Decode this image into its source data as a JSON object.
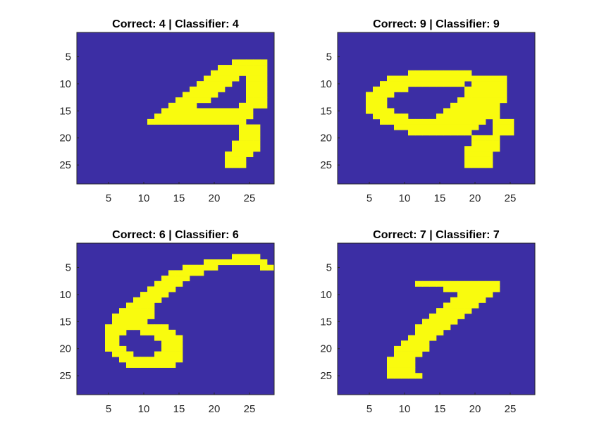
{
  "chart_data": [
    {
      "type": "heatmap",
      "title": "Correct: 4 | Classifier: 4",
      "image_size": [
        28,
        28
      ],
      "xticks": [
        "5",
        "10",
        "15",
        "20",
        "25"
      ],
      "yticks": [
        "5",
        "10",
        "15",
        "20",
        "25"
      ],
      "colormap": {
        "background": "#3c2ea4",
        "ink": "#f9fb0e"
      },
      "rows": [
        "............................",
        "............................",
        "............................",
        "............................",
        "............................",
        "......................#####.",
        "....................#######.",
        "...................########.",
        "..................#####.###.",
        ".................#####..###.",
        "................#####...###.",
        "...............#####....###.",
        "..............#####.....###.",
        ".............####......####.",
        "............#############...",
        "...........##############...",
        "..........##############....",
        ".......................###..",
        ".......................###..",
        ".......................###..",
        "......................####..",
        "......................####..",
        ".....................####...",
        ".....................###....",
        ".....................###....",
        "............................",
        "............................",
        "............................"
      ]
    },
    {
      "type": "heatmap",
      "title": "Correct: 9 | Classifier: 9",
      "image_size": [
        28,
        28
      ],
      "xticks": [
        "5",
        "10",
        "15",
        "20",
        "25"
      ],
      "yticks": [
        "5",
        "10",
        "15",
        "20",
        "25"
      ],
      "colormap": {
        "background": "#3c2ea4",
        "ink": "#f9fb0e"
      },
      "rows": [
        "............................",
        "............................",
        "............................",
        "............................",
        "............................",
        "............................",
        "............................",
        "..........#########.........",
        ".......#################....",
        "......############.#####....",
        ".....#####........######....",
        "....####..........######....",
        "....###..........#######....",
        "....###.........#######.....",
        "....####.......########.....",
        ".....#####....#########.....",
        "......###############.###...",
        "........############..###...",
        "..........#########...###...",
        "...................####.....",
        "...................####.....",
        "..................#####.....",
        "..................####......",
        "..................####......",
        "..................####......",
        "............................",
        "............................",
        "............................"
      ]
    },
    {
      "type": "heatmap",
      "title": "Correct: 6 | Classifier: 6",
      "image_size": [
        28,
        28
      ],
      "xticks": [
        "5",
        "10",
        "15",
        "20",
        "25"
      ],
      "yticks": [
        "5",
        "10",
        "15",
        "20",
        "25"
      ],
      "colormap": {
        "background": "#3c2ea4",
        "ink": "#f9fb0e"
      },
      "rows": [
        "............................",
        "............................",
        "......................####..",
        "..................#########.",
        "...............#####......##",
        ".............#####..........",
        "............####............",
        "...........####.............",
        "..........####..............",
        ".........####...............",
        "........####................",
        ".......####.................",
        "......#####.................",
        ".....######.................",
        ".....#####..................",
        "....#########...............",
        "....###..#####..............",
        "....##.....####.............",
        "....##......###.............",
        "....###.....###.............",
        ".....###...####.............",
        "......#########.............",
        ".......#######..............",
        "............................",
        "............................",
        "............................",
        "............................",
        "............................"
      ]
    },
    {
      "type": "heatmap",
      "title": "Correct: 7 | Classifier: 7",
      "image_size": [
        28,
        28
      ],
      "xticks": [
        "5",
        "10",
        "15",
        "20",
        "25"
      ],
      "yticks": [
        "5",
        "10",
        "15",
        "20",
        "25"
      ],
      "colormap": {
        "background": "#3c2ea4",
        "ink": "#f9fb0e"
      },
      "rows": [
        "............................",
        "............................",
        "............................",
        "............................",
        "............................",
        "............................",
        "............................",
        "...........############.....",
        "...............########.....",
        ".................#####......",
        "................#####.......",
        "...............#####........",
        "..............#####.........",
        ".............#####..........",
        "............#####...........",
        "...........#####............",
        "...........####.............",
        "..........####..............",
        ".........####...............",
        "........#####...............",
        "........####................",
        ".......####.................",
        ".......####.................",
        ".......####.................",
        ".......#####................",
        "............................",
        "............................",
        "............................"
      ]
    }
  ]
}
